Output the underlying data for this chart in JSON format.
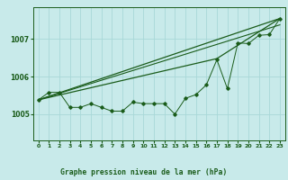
{
  "title": "Graphe pression niveau de la mer (hPa)",
  "bg_color": "#c8eaea",
  "grid_color": "#a8d8d8",
  "line_color": "#1a5c1a",
  "label_bg": "#4a7a4a",
  "xlim": [
    -0.5,
    23.5
  ],
  "ylim": [
    1004.3,
    1007.85
  ],
  "yticks": [
    1005,
    1006,
    1007
  ],
  "xticks": [
    0,
    1,
    2,
    3,
    4,
    5,
    6,
    7,
    8,
    9,
    10,
    11,
    12,
    13,
    14,
    15,
    16,
    17,
    18,
    19,
    20,
    21,
    22,
    23
  ],
  "hourly_data": {
    "x": [
      0,
      1,
      2,
      3,
      4,
      5,
      6,
      7,
      8,
      9,
      10,
      11,
      12,
      13,
      14,
      15,
      16,
      17,
      18,
      19,
      20,
      21,
      22,
      23
    ],
    "y": [
      1005.38,
      1005.58,
      1005.58,
      1005.18,
      1005.18,
      1005.28,
      1005.18,
      1005.08,
      1005.08,
      1005.32,
      1005.28,
      1005.28,
      1005.28,
      1005.0,
      1005.42,
      1005.52,
      1005.78,
      1006.45,
      1005.68,
      1006.9,
      1006.88,
      1007.1,
      1007.12,
      1007.55
    ]
  },
  "line1": {
    "x": [
      0,
      23
    ],
    "y": [
      1005.38,
      1007.55
    ]
  },
  "line2": {
    "x": [
      0,
      17,
      23
    ],
    "y": [
      1005.38,
      1006.48,
      1007.55
    ]
  },
  "line3": {
    "x": [
      0,
      23
    ],
    "y": [
      1005.38,
      1007.38
    ]
  }
}
